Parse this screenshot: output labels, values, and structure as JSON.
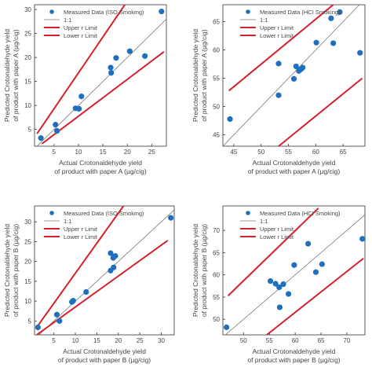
{
  "figure": {
    "background": "#ffffff"
  },
  "style": {
    "point_color": "#1f6fbf",
    "identity_color": "#7a7a7a",
    "limit_color": "#d6202c",
    "axis_color": "#333333",
    "text_color": "#444444"
  },
  "chart_data": [
    {
      "type": "scatter",
      "title": "",
      "legend": {
        "placement": "top-left",
        "entries": [
          "Measured Data (ISO Smoking)",
          "1:1",
          "Upper r Limit",
          "Lower r Limit"
        ]
      },
      "xlabel": [
        "Actual Crotonaldehyde yield",
        "of product with paper A (µg/cig)"
      ],
      "ylabel": [
        "Predicted Crotonaldehyde yield",
        "of product with paper A (µg/cig)"
      ],
      "xlim": [
        1,
        28
      ],
      "ylim": [
        1.5,
        31
      ],
      "xticks": [
        5,
        10,
        15,
        20,
        25
      ],
      "yticks": [
        5,
        10,
        15,
        20,
        25,
        30
      ],
      "grid": false,
      "points": [
        [
          2.3,
          3.2
        ],
        [
          5.3,
          6.0
        ],
        [
          5.6,
          4.7
        ],
        [
          9.4,
          9.4
        ],
        [
          10.1,
          9.3
        ],
        [
          10.6,
          11.9
        ],
        [
          16.6,
          17.9
        ],
        [
          16.7,
          16.8
        ],
        [
          17.7,
          19.9
        ],
        [
          20.5,
          21.3
        ],
        [
          23.6,
          20.3
        ],
        [
          27.0,
          29.6
        ]
      ],
      "identity_line": [
        [
          1,
          1
        ],
        [
          28,
          28
        ]
      ],
      "upper_limit": [
        [
          1.5,
          4.1
        ],
        [
          19.5,
          31
        ]
      ],
      "lower_limit": [
        [
          2.5,
          2.0
        ],
        [
          27.5,
          21.2
        ]
      ]
    },
    {
      "type": "scatter",
      "title": "",
      "legend": {
        "placement": "top-right",
        "entries": [
          "Measured Data (HCI Smoking)",
          "1:1",
          "Upper r Limit",
          "Lower r Limit"
        ]
      },
      "xlabel": [
        "Actual Crotonaldehyde yield",
        "of product with paper A (µg/cig)"
      ],
      "ylabel": [
        "Predicted Crotonaldehyde yield",
        "of product with paper A (µg/cig)"
      ],
      "xlim": [
        43,
        69
      ],
      "ylim": [
        43,
        68
      ],
      "xticks": [
        45,
        50,
        55,
        60,
        65
      ],
      "yticks": [
        45,
        50,
        55,
        60,
        65
      ],
      "grid": false,
      "points": [
        [
          44.3,
          47.8
        ],
        [
          53.2,
          57.6
        ],
        [
          53.2,
          52.0
        ],
        [
          56.0,
          54.9
        ],
        [
          56.4,
          57.1
        ],
        [
          56.9,
          56.3
        ],
        [
          57.3,
          56.6
        ],
        [
          57.6,
          56.9
        ],
        [
          60.1,
          61.3
        ],
        [
          62.8,
          65.6
        ],
        [
          63.2,
          61.2
        ],
        [
          64.4,
          66.7
        ],
        [
          68.1,
          59.5
        ]
      ],
      "identity_line": [
        [
          43,
          43
        ],
        [
          68,
          68
        ]
      ],
      "upper_limit": [
        [
          44.1,
          52.8
        ],
        [
          63.2,
          68
        ]
      ],
      "lower_limit": [
        [
          53.2,
          43
        ],
        [
          68.5,
          55.0
        ]
      ]
    },
    {
      "type": "scatter",
      "title": "",
      "legend": {
        "placement": "top-left",
        "entries": [
          "Measured Data (ISO Smoking)",
          "1:1",
          "Upper r Limit",
          "Lower r Limit"
        ]
      },
      "xlabel": [
        "Actual Crotonaldehyde yield",
        "of product with paper B (µg/cig)"
      ],
      "ylabel": [
        "Predicted Crotonaldehyde yield",
        "of product with paper B (µg/cig)"
      ],
      "xlim": [
        0.5,
        33
      ],
      "ylim": [
        1.5,
        34
      ],
      "xticks": [
        5,
        10,
        15,
        20,
        25,
        30
      ],
      "yticks": [
        5,
        10,
        15,
        20,
        25,
        30
      ],
      "grid": false,
      "points": [
        [
          1.3,
          3.4
        ],
        [
          5.7,
          6.6
        ],
        [
          6.3,
          5.0
        ],
        [
          9.2,
          9.8
        ],
        [
          9.5,
          10.1
        ],
        [
          12.5,
          12.3
        ],
        [
          18.2,
          22.1
        ],
        [
          18.2,
          17.7
        ],
        [
          18.8,
          20.9
        ],
        [
          18.9,
          18.5
        ],
        [
          19.3,
          21.4
        ],
        [
          32.2,
          31.0
        ]
      ],
      "identity_line": [
        [
          0.5,
          0.5
        ],
        [
          33,
          33
        ]
      ],
      "upper_limit": [
        [
          1.0,
          3.4
        ],
        [
          21.2,
          34
        ]
      ],
      "lower_limit": [
        [
          1.0,
          1.5
        ],
        [
          31.5,
          25.3
        ]
      ]
    },
    {
      "type": "scatter",
      "title": "",
      "legend": {
        "placement": "top-right",
        "entries": [
          "Measured Data (HCI Smoking)",
          "1:1",
          "Upper r Limit",
          "Lower r Limit"
        ]
      },
      "xlabel": [
        "Actual Crotonaldehyde yield",
        "of product with paper B (µg/cig)"
      ],
      "ylabel": [
        "Predicted Crotonaldehyde yield",
        "of product with paper B (µg/cig)"
      ],
      "xlim": [
        46,
        73.5
      ],
      "ylim": [
        46.5,
        75.5
      ],
      "xticks": [
        50,
        55,
        60,
        65,
        70
      ],
      "yticks": [
        50,
        55,
        60,
        65,
        70
      ],
      "grid": false,
      "points": [
        [
          46.7,
          48.2
        ],
        [
          55.2,
          58.6
        ],
        [
          56.2,
          58.0
        ],
        [
          57.0,
          52.7
        ],
        [
          56.9,
          57.2
        ],
        [
          57.7,
          57.9
        ],
        [
          58.7,
          55.7
        ],
        [
          59.8,
          62.2
        ],
        [
          62.5,
          67.0
        ],
        [
          64.0,
          60.6
        ],
        [
          65.2,
          62.4
        ],
        [
          73.0,
          68.1
        ]
      ],
      "identity_line": [
        [
          46,
          46
        ],
        [
          73.5,
          73.5
        ]
      ],
      "upper_limit": [
        [
          47,
          55.3
        ],
        [
          64.5,
          75
        ]
      ],
      "lower_limit": [
        [
          54.5,
          46.5
        ],
        [
          73.2,
          63.7
        ]
      ]
    }
  ]
}
